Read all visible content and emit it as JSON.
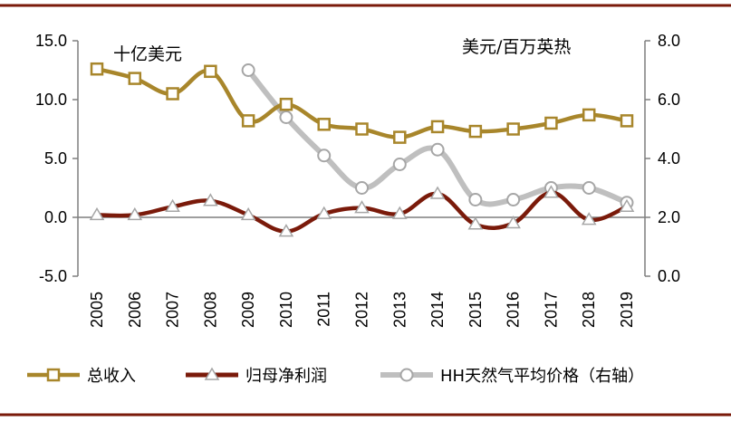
{
  "chart_data": {
    "type": "line",
    "categories": [
      "2005",
      "2006",
      "2007",
      "2008",
      "2009",
      "2010",
      "2011",
      "2012",
      "2013",
      "2014",
      "2015",
      "2016",
      "2017",
      "2018",
      "2019"
    ],
    "left_axis": {
      "unit_label": "十亿美元",
      "min": -5,
      "max": 15,
      "ticks": [
        "-5.0",
        "0.0",
        "5.0",
        "10.0",
        "15.0"
      ]
    },
    "right_axis": {
      "unit_label": "美元/百万英热",
      "min": 0,
      "max": 8,
      "ticks": [
        "0.0",
        "2.0",
        "4.0",
        "6.0",
        "8.0"
      ]
    },
    "series": [
      {
        "name": "总收入",
        "axis": "left",
        "color": "#a8862b",
        "marker": "square",
        "values": [
          12.6,
          11.8,
          10.5,
          12.4,
          8.2,
          9.6,
          7.9,
          7.5,
          6.8,
          7.7,
          7.3,
          7.5,
          8.0,
          8.7,
          8.2
        ]
      },
      {
        "name": "归母净利润",
        "axis": "left",
        "color": "#7a1a0a",
        "marker": "triangle",
        "values": [
          0.2,
          0.2,
          0.9,
          1.4,
          0.2,
          -1.2,
          0.3,
          0.8,
          0.3,
          2.0,
          -0.6,
          -0.5,
          2.1,
          -0.2,
          0.9
        ]
      },
      {
        "name": "HH天然气平均价格（右轴）",
        "axis": "right",
        "color": "#bfbfbf",
        "marker": "circle",
        "values": [
          null,
          null,
          null,
          null,
          7.0,
          5.4,
          4.1,
          3.0,
          3.8,
          4.3,
          2.6,
          2.6,
          3.0,
          3.0,
          2.5
        ]
      }
    ]
  }
}
